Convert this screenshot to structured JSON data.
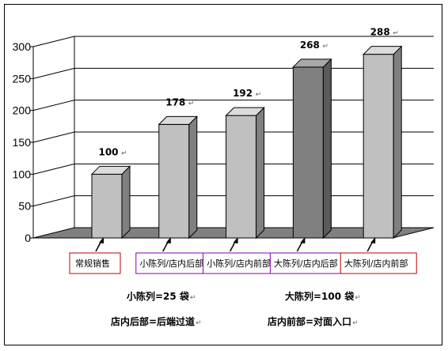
{
  "chart_data": {
    "type": "bar",
    "style": "3d",
    "title": "",
    "xlabel": "",
    "ylabel": "",
    "ylim": [
      0,
      300
    ],
    "yticks": [
      0,
      50,
      100,
      150,
      200,
      250,
      300
    ],
    "grid": true,
    "legend": "none",
    "categories": [
      "常规销售",
      "小陈列/店内后部",
      "小陈列/店内前部",
      "大陈列/店内后部",
      "大陈列/店内前部"
    ],
    "values": [
      100,
      178,
      192,
      268,
      288
    ],
    "data_labels": [
      "100",
      "178",
      "192",
      "268",
      "288"
    ],
    "bar_colors": [
      "#c0c0c0",
      "#c0c0c0",
      "#c0c0c0",
      "#808080",
      "#c0c0c0"
    ],
    "category_box_colors": [
      "#c00000",
      "#8800aa",
      "#8800aa",
      "#8800aa",
      "#c00000"
    ]
  },
  "notes": {
    "small_display": "小陈列=25 袋",
    "large_display": "大陈列=100 袋",
    "store_back": "店内后部=后端过道",
    "store_front": "店内前部=对面入口"
  },
  "colors": {
    "grid": "#000000",
    "floor": "#808080",
    "bar_light": "#c0c0c0",
    "bar_dark": "#808080"
  }
}
